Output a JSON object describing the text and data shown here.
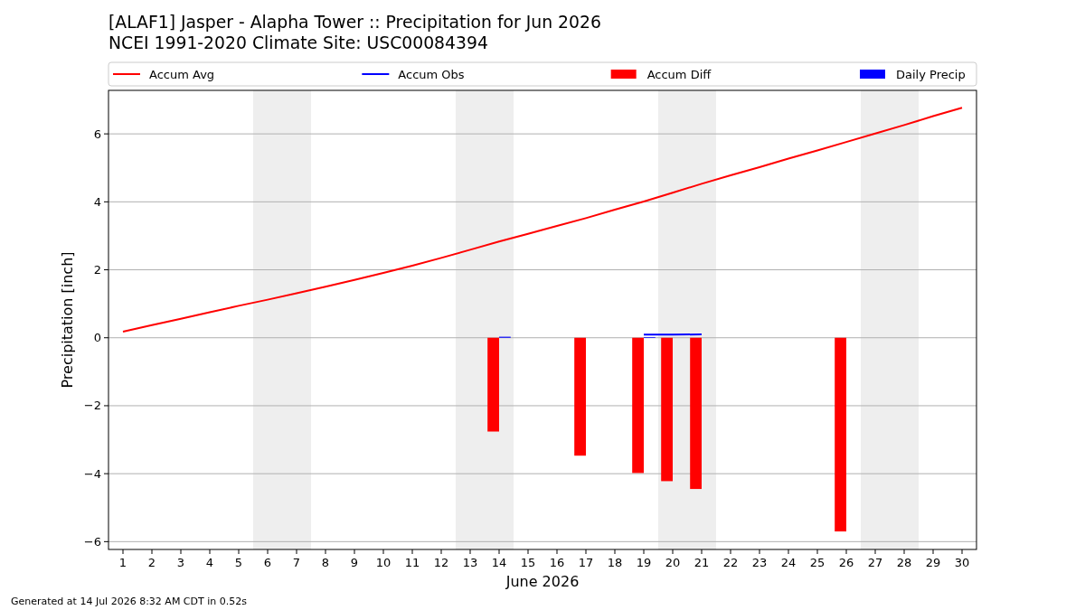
{
  "chart_data": {
    "type": "line",
    "title": "[ALAF1] Jasper - Alapha Tower :: Precipitation for Jun 2026",
    "subtitle": "NCEI 1991-2020 Climate Site: USC00084394",
    "xlabel": "June 2026",
    "ylabel": "Precipitation [inch]",
    "annotations": [
      "Generated at 14 Jul 2026 8:32 AM CDT in 0.52s"
    ],
    "x": [
      1,
      2,
      3,
      4,
      5,
      6,
      7,
      8,
      9,
      10,
      11,
      12,
      13,
      14,
      15,
      16,
      17,
      18,
      19,
      20,
      21,
      22,
      23,
      24,
      25,
      26,
      27,
      28,
      29,
      30
    ],
    "xlim": [
      0.5,
      30.5
    ],
    "xticks": [
      1,
      2,
      3,
      4,
      5,
      6,
      7,
      8,
      9,
      10,
      11,
      12,
      13,
      14,
      15,
      16,
      17,
      18,
      19,
      20,
      21,
      22,
      23,
      24,
      25,
      26,
      27,
      28,
      29,
      30
    ],
    "ylim": [
      -6.23,
      7.28
    ],
    "yticks": [
      {
        "value": -6,
        "label": "−6"
      },
      {
        "value": -4,
        "label": "−4"
      },
      {
        "value": -2,
        "label": "−2"
      },
      0,
      2,
      4,
      6
    ],
    "grid": "y",
    "legend": "top",
    "bands": [
      {
        "axis": "x",
        "from": 5.5,
        "to": 7.5,
        "color": "#eeeeee"
      },
      {
        "axis": "x",
        "from": 12.5,
        "to": 14.5,
        "color": "#eeeeee"
      },
      {
        "axis": "x",
        "from": 19.5,
        "to": 21.5,
        "color": "#eeeeee"
      },
      {
        "axis": "x",
        "from": 26.5,
        "to": 28.5,
        "color": "#eeeeee"
      }
    ],
    "series": [
      {
        "name": "Accum Avg",
        "color": "#ff0000",
        "values": [
          0.18,
          0.37,
          0.56,
          0.75,
          0.94,
          1.12,
          1.31,
          1.5,
          1.7,
          1.91,
          2.12,
          2.35,
          2.59,
          2.83,
          3.06,
          3.29,
          3.52,
          3.77,
          4.01,
          4.27,
          4.53,
          4.78,
          5.02,
          5.27,
          5.51,
          5.76,
          6.01,
          6.26,
          6.52,
          6.77
        ]
      },
      {
        "name": "Accum Obs",
        "color": "#0000ff",
        "values": [
          null,
          null,
          null,
          null,
          null,
          null,
          null,
          null,
          null,
          null,
          null,
          null,
          null,
          null,
          null,
          null,
          null,
          null,
          0.09,
          0.09,
          0.1,
          null,
          null,
          null,
          null,
          null,
          null,
          null,
          null,
          null
        ]
      },
      {
        "name": "Accum Diff",
        "type": "bar",
        "color": "#ff0000",
        "values": [
          null,
          null,
          null,
          null,
          null,
          null,
          null,
          null,
          null,
          null,
          null,
          null,
          null,
          -2.76,
          null,
          null,
          -3.47,
          null,
          -3.98,
          -4.22,
          -4.45,
          null,
          null,
          null,
          null,
          -5.7,
          null,
          null,
          null,
          null
        ]
      },
      {
        "name": "Daily Precip",
        "type": "bar",
        "color": "#0000ff",
        "values": [
          null,
          null,
          null,
          null,
          null,
          null,
          null,
          null,
          null,
          null,
          null,
          null,
          null,
          0.03,
          null,
          null,
          null,
          null,
          0.02,
          null,
          null,
          null,
          null,
          null,
          null,
          null,
          null,
          null,
          null,
          null
        ]
      }
    ]
  }
}
